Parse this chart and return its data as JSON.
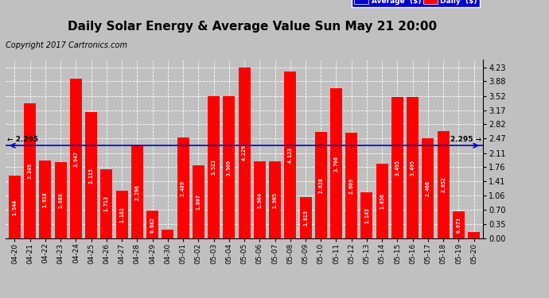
{
  "title": "Daily Solar Energy & Average Value Sun May 21 20:00",
  "copyright": "Copyright 2017 Cartronics.com",
  "average_value": 2.295,
  "categories": [
    "04-20",
    "04-21",
    "04-22",
    "04-23",
    "04-24",
    "04-25",
    "04-26",
    "04-27",
    "04-28",
    "04-29",
    "04-30",
    "05-01",
    "05-02",
    "05-03",
    "05-04",
    "05-05",
    "05-06",
    "05-07",
    "05-08",
    "05-09",
    "05-10",
    "05-11",
    "05-12",
    "05-13",
    "05-14",
    "05-15",
    "05-16",
    "05-17",
    "05-18",
    "05-19",
    "05-20"
  ],
  "values": [
    1.544,
    3.349,
    1.918,
    1.888,
    3.947,
    3.115,
    1.713,
    1.182,
    2.296,
    0.682,
    0.216,
    2.489,
    1.807,
    3.523,
    3.509,
    4.229,
    1.904,
    1.905,
    4.123,
    1.015,
    2.628,
    3.706,
    2.609,
    1.143,
    1.856,
    3.495,
    3.495,
    2.466,
    2.652,
    0.673,
    0.166
  ],
  "bar_color": "#FF0000",
  "avg_line_color": "#0000CD",
  "yticks": [
    0.0,
    0.35,
    0.7,
    1.06,
    1.41,
    1.76,
    2.11,
    2.47,
    2.82,
    3.17,
    3.52,
    3.88,
    4.23
  ],
  "ylim": [
    0,
    4.42
  ],
  "background_color": "#C0C0C0",
  "legend_avg_color": "#0000CD",
  "legend_daily_color": "#FF0000",
  "title_fontsize": 11,
  "copyright_fontsize": 7,
  "tick_fontsize": 7,
  "bar_label_fontsize": 5,
  "avg_label": "Average  ($)",
  "daily_label": "Daily  ($)"
}
